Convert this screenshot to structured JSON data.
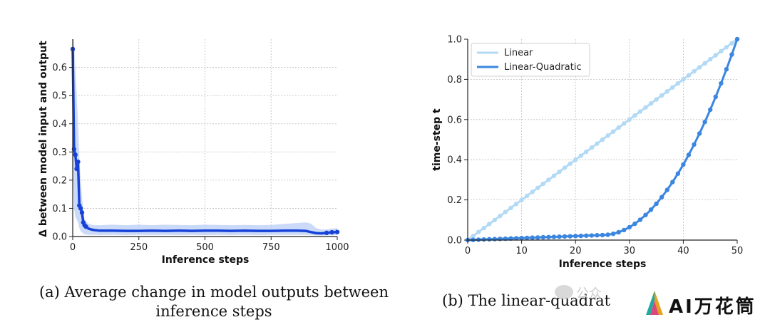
{
  "chart_data": [
    {
      "type": "line",
      "xlabel": "Inference steps",
      "ylabel": "Δ between model input and output",
      "xlim": [
        0,
        1000
      ],
      "ylim": [
        0,
        0.7
      ],
      "xticks": [
        0,
        250,
        500,
        750,
        1000
      ],
      "yticks": [
        0.0,
        0.1,
        0.2,
        0.3,
        0.4,
        0.5,
        0.6
      ],
      "grid": true,
      "colors": {
        "line": "#1642d8",
        "band": "#b9cdf7"
      },
      "series": [
        {
          "x": [
            0,
            5,
            10,
            15,
            20,
            25,
            30,
            35,
            40,
            45,
            50,
            60,
            70,
            80,
            90,
            100,
            150,
            200,
            250,
            300,
            350,
            400,
            450,
            500,
            550,
            600,
            650,
            700,
            750,
            800,
            850,
            880,
            900,
            920,
            940,
            960,
            980,
            1000
          ],
          "y": [
            0.665,
            0.31,
            0.29,
            0.24,
            0.265,
            0.11,
            0.1,
            0.085,
            0.05,
            0.04,
            0.035,
            0.028,
            0.025,
            0.023,
            0.022,
            0.021,
            0.021,
            0.02,
            0.02,
            0.021,
            0.02,
            0.021,
            0.02,
            0.021,
            0.021,
            0.02,
            0.021,
            0.02,
            0.02,
            0.021,
            0.021,
            0.02,
            0.016,
            0.012,
            0.011,
            0.013,
            0.015,
            0.016
          ],
          "upper": [
            0.7,
            0.7,
            0.6,
            0.5,
            0.4,
            0.28,
            0.2,
            0.14,
            0.09,
            0.06,
            0.055,
            0.045,
            0.042,
            0.04,
            0.04,
            0.04,
            0.042,
            0.04,
            0.042,
            0.04,
            0.042,
            0.041,
            0.04,
            0.042,
            0.041,
            0.04,
            0.041,
            0.04,
            0.041,
            0.045,
            0.048,
            0.05,
            0.046,
            0.03,
            0.025,
            0.025,
            0.028,
            0.03
          ],
          "lower": [
            0.3,
            0.1,
            0.07,
            0.06,
            0.05,
            0.03,
            0.02,
            0.015,
            0.01,
            0.008,
            0.007,
            0.006,
            0.006,
            0.006,
            0.006,
            0.005,
            0.006,
            0.005,
            0.006,
            0.005,
            0.006,
            0.005,
            0.006,
            0.005,
            0.006,
            0.005,
            0.006,
            0.005,
            0.006,
            0.006,
            0.006,
            0.006,
            0.005,
            0.004,
            0.004,
            0.004,
            0.005,
            0.005
          ]
        }
      ]
    },
    {
      "type": "line",
      "xlabel": "Inference steps",
      "ylabel": "time-step t",
      "xlim": [
        0,
        50
      ],
      "ylim": [
        0,
        1.0
      ],
      "xticks": [
        0,
        10,
        20,
        30,
        40,
        50
      ],
      "yticks": [
        0.0,
        0.2,
        0.4,
        0.6,
        0.8,
        1.0
      ],
      "grid": true,
      "legend": "top-left",
      "series": [
        {
          "name": "Linear",
          "color": "#b3daf5",
          "x_range": [
            0,
            50
          ],
          "formula": "t = x / 50"
        },
        {
          "name": "Linear-Quadratic",
          "color": "#3a86e0",
          "x_range": [
            0,
            50
          ],
          "formula": "t = 0.025*x/25 for x<=25; quadratic rise to 1.0 at x=50"
        }
      ]
    }
  ],
  "captions": {
    "a_line1": "(a) Average change in model outputs between",
    "a_line2": "inference steps",
    "b": "(b) The linear-quadrat"
  },
  "watermark": {
    "text": "AI万花筒",
    "partial_text": "公众"
  }
}
